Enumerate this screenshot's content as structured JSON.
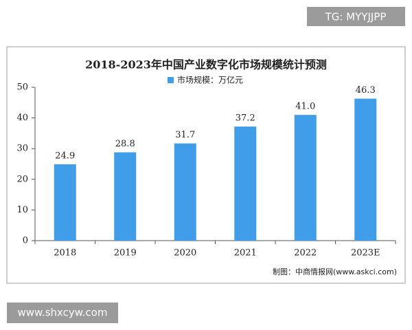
{
  "chart_data": {
    "type": "bar",
    "title": "2018-2023年中国产业数字化市场规模统计预测",
    "series": [
      {
        "name": "市场规模：万亿元",
        "color": "#3f9de9",
        "values": [
          24.9,
          28.8,
          31.7,
          37.2,
          41.0,
          46.3
        ],
        "value_labels": [
          "24.9",
          "28.8",
          "31.7",
          "37.2",
          "41.0",
          "46.3"
        ]
      }
    ],
    "categories": [
      "2018",
      "2019",
      "2020",
      "2021",
      "2022",
      "2023E"
    ],
    "ylim": [
      0,
      50
    ],
    "yticks": [
      0,
      10,
      20,
      30,
      40,
      50
    ],
    "grid": false,
    "source": "制图：中商情报网(www.askci.com)"
  },
  "overlays": {
    "top_right": "TG: MYYJJPP",
    "bottom_left": "www.shxcyw.com"
  }
}
